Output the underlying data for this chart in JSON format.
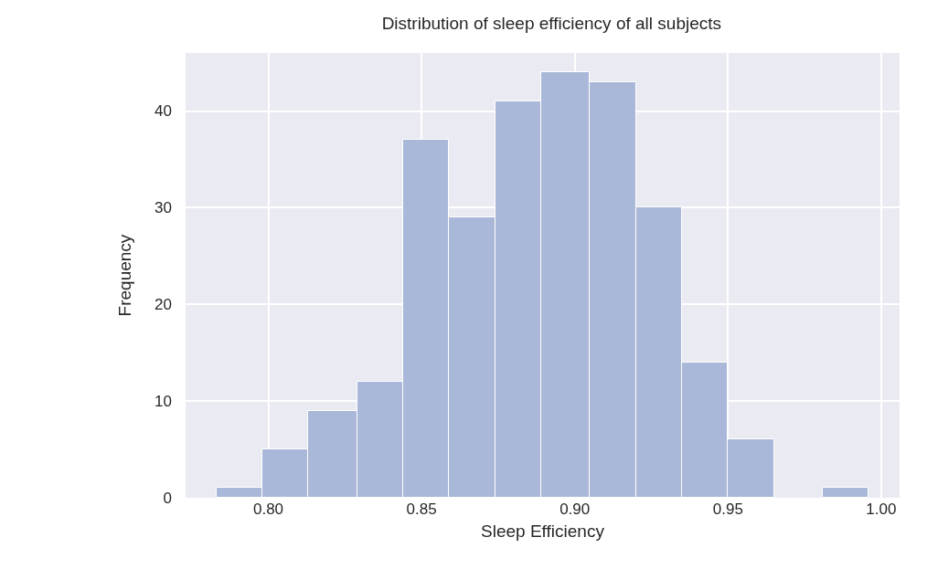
{
  "chart_data": {
    "type": "histogram",
    "title": "Distribution of sleep efficiency of all subjects",
    "xlabel": "Sleep Efficiency",
    "ylabel": "Frequency",
    "bins": [
      0.783,
      0.798,
      0.813,
      0.829,
      0.844,
      0.859,
      0.874,
      0.889,
      0.905,
      0.92,
      0.935,
      0.95,
      0.965,
      0.981,
      0.996
    ],
    "values": [
      1,
      5,
      9,
      12,
      37,
      29,
      41,
      44,
      43,
      30,
      14,
      6,
      0,
      1
    ],
    "color": "#a9b8d8",
    "xlim": [
      0.773,
      1.006
    ],
    "xticks": [
      {
        "value": 0.8,
        "label": "0.80"
      },
      {
        "value": 0.85,
        "label": "0.85"
      },
      {
        "value": 0.9,
        "label": "0.90"
      },
      {
        "value": 0.95,
        "label": "0.95"
      },
      {
        "value": 1.0,
        "label": "1.00"
      }
    ],
    "ylim": [
      0,
      46
    ],
    "yticks": [
      0,
      10,
      20,
      30,
      40
    ],
    "grid": true,
    "legend": false
  }
}
